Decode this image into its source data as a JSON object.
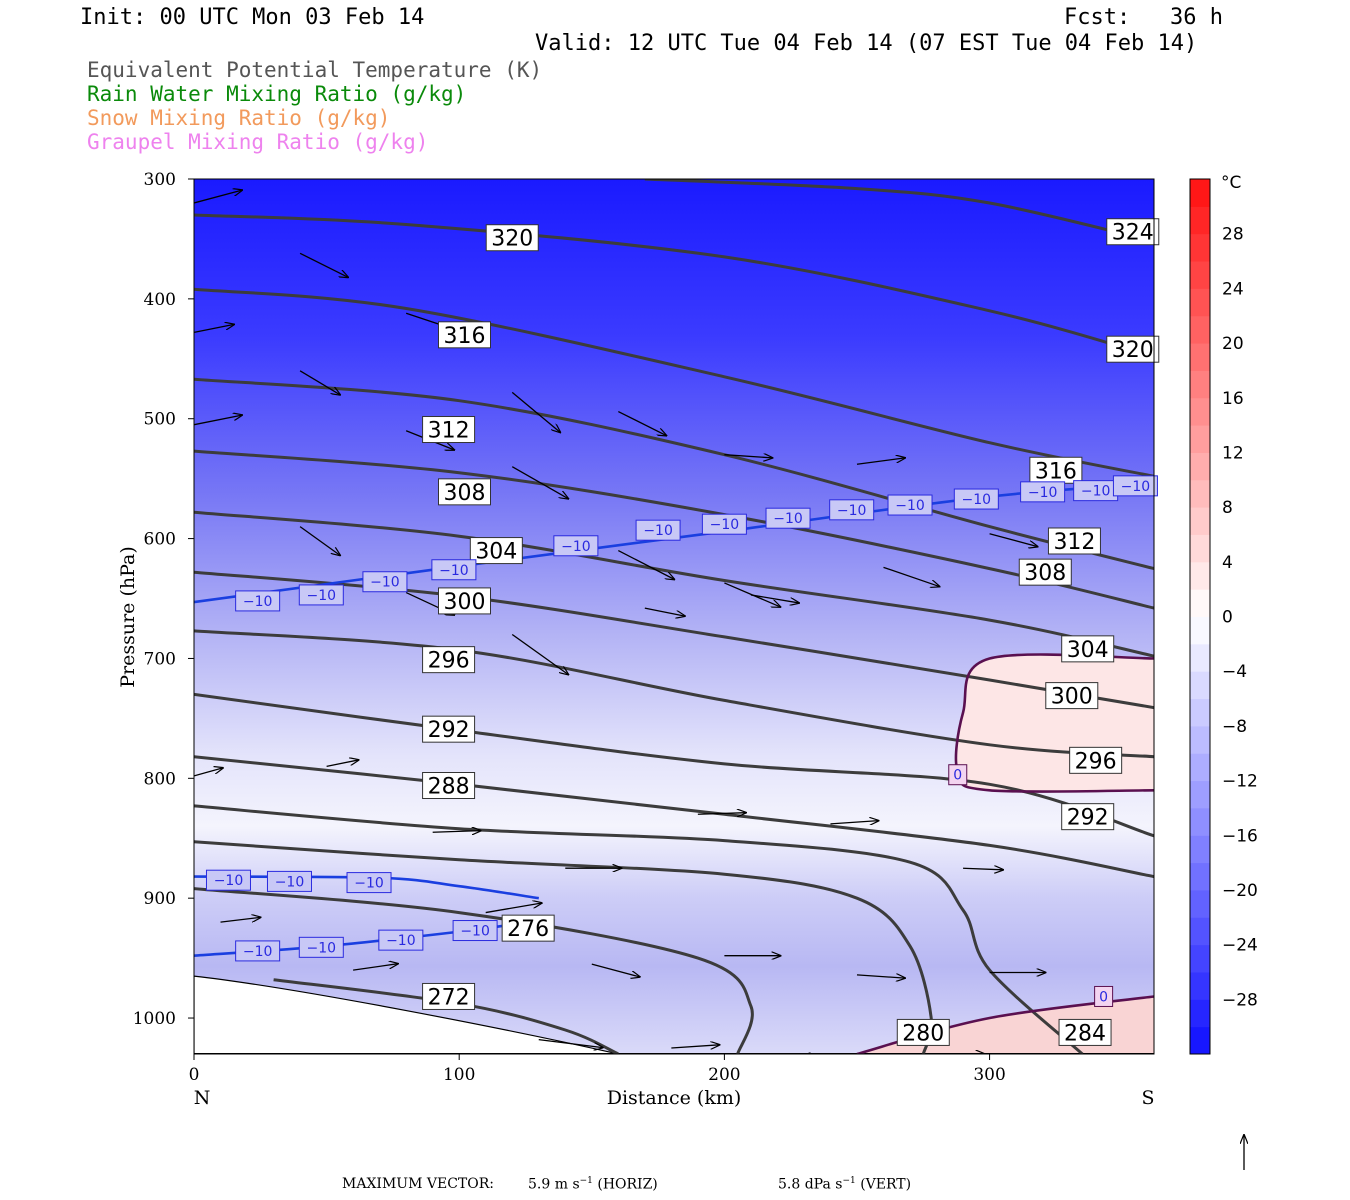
{
  "header": {
    "init": "Init: 00 UTC Mon 03 Feb 14",
    "fcst": "Fcst:   36 h",
    "valid": "Valid: 12 UTC Tue 04 Feb 14 (07 EST Tue 04 Feb 14)"
  },
  "legend": [
    {
      "text": "Equivalent Potential Temperature (K)",
      "color": "#555555"
    },
    {
      "text": "Rain Water Mixing Ratio (g/kg)",
      "color": "#0a8a0a"
    },
    {
      "text": "Snow Mixing Ratio (g/kg)",
      "color": "#f29a5c"
    },
    {
      "text": "Graupel Mixing Ratio (g/kg)",
      "color": "#ee82ee"
    }
  ],
  "chart_data": {
    "type": "cross-section",
    "xlabel": "Distance (km)",
    "ylabel": "Pressure (hPa)",
    "x_ticks": [
      "0",
      "100",
      "200",
      "300"
    ],
    "x_tick_values": [
      0,
      100,
      200,
      300
    ],
    "xlim": [
      0,
      362
    ],
    "y_ticks": [
      "300",
      "400",
      "500",
      "600",
      "700",
      "800",
      "900",
      "1000"
    ],
    "y_tick_values": [
      300,
      400,
      500,
      600,
      700,
      800,
      900,
      1000
    ],
    "ylim": [
      300,
      1030
    ],
    "left_end_label": "N",
    "right_end_label": "S",
    "colorbar": {
      "unit": "°C",
      "tick_labels": [
        "28",
        "24",
        "20",
        "16",
        "12",
        "8",
        "4",
        "0",
        "−4",
        "−8",
        "−12",
        "−16",
        "−20",
        "−24",
        "−28"
      ],
      "tick_values": [
        28,
        24,
        20,
        16,
        12,
        8,
        4,
        0,
        -4,
        -8,
        -12,
        -16,
        -20,
        -24,
        -28
      ],
      "range": [
        -32,
        32
      ],
      "cold_color": "#1010ff",
      "neutral_color": "#ffffff",
      "warm_color": "#ff1010"
    },
    "theta_e_isentropes": [
      {
        "value": 324,
        "label": "324",
        "points": [
          [
            170,
            300
          ],
          [
            250,
            308
          ],
          [
            300,
            320
          ],
          [
            362,
            352
          ]
        ],
        "label_at": [
          354,
          344
        ]
      },
      {
        "value": 320,
        "label": "320",
        "points": [
          [
            0,
            330
          ],
          [
            80,
            338
          ],
          [
            200,
            365
          ],
          [
            300,
            410
          ],
          [
            362,
            448
          ]
        ],
        "label_at": [
          120,
          349
        ],
        "label2": "320",
        "label2_at": [
          354,
          442
        ]
      },
      {
        "value": 316,
        "label": "316",
        "points": [
          [
            0,
            392
          ],
          [
            80,
            408
          ],
          [
            200,
            465
          ],
          [
            300,
            520
          ],
          [
            362,
            548
          ]
        ],
        "label_at": [
          102,
          430
        ],
        "label2": "316",
        "label2_at": [
          325,
          543
        ]
      },
      {
        "value": 312,
        "label": "312",
        "points": [
          [
            0,
            467
          ],
          [
            100,
            485
          ],
          [
            200,
            530
          ],
          [
            300,
            590
          ],
          [
            362,
            625
          ]
        ],
        "label_at": [
          96,
          509
        ],
        "label2": "312",
        "label2_at": [
          332,
          602
        ]
      },
      {
        "value": 308,
        "label": "308",
        "points": [
          [
            0,
            527
          ],
          [
            100,
            545
          ],
          [
            200,
            580
          ],
          [
            300,
            625
          ],
          [
            362,
            658
          ]
        ],
        "label_at": [
          102,
          561
        ],
        "label2": "308",
        "label2_at": [
          321,
          628
        ]
      },
      {
        "value": 304,
        "label": "304",
        "points": [
          [
            0,
            578
          ],
          [
            100,
            598
          ],
          [
            200,
            635
          ],
          [
            300,
            668
          ],
          [
            362,
            698
          ]
        ],
        "label_at": [
          114,
          610
        ],
        "label2": "304",
        "label2_at": [
          337,
          692
        ]
      },
      {
        "value": 300,
        "label": "300",
        "points": [
          [
            0,
            628
          ],
          [
            100,
            648
          ],
          [
            200,
            682
          ],
          [
            300,
            718
          ],
          [
            362,
            741
          ]
        ],
        "label_at": [
          102,
          652
        ],
        "label2": "300",
        "label2_at": [
          331,
          731
        ]
      },
      {
        "value": 296,
        "label": "296",
        "points": [
          [
            0,
            677
          ],
          [
            100,
            693
          ],
          [
            200,
            735
          ],
          [
            300,
            772
          ],
          [
            362,
            782
          ]
        ],
        "label_at": [
          96,
          701
        ],
        "label2": "296",
        "label2_at": [
          340,
          785
        ]
      },
      {
        "value": 292,
        "label": "292",
        "points": [
          [
            0,
            730
          ],
          [
            100,
            760
          ],
          [
            200,
            788
          ],
          [
            300,
            805
          ],
          [
            362,
            848
          ]
        ],
        "label_at": [
          96,
          759
        ],
        "label2": "292",
        "label2_at": [
          337,
          832
        ]
      },
      {
        "value": 288,
        "label": "288",
        "points": [
          [
            0,
            782
          ],
          [
            100,
            805
          ],
          [
            200,
            830
          ],
          [
            300,
            856
          ],
          [
            362,
            882
          ]
        ],
        "label_at": [
          96,
          806
        ]
      },
      {
        "value": 284,
        "label": "284",
        "points": [
          [
            0,
            823
          ],
          [
            100,
            842
          ],
          [
            200,
            852
          ],
          [
            270,
            870
          ],
          [
            290,
            910
          ],
          [
            300,
            960
          ],
          [
            335,
            1030
          ]
        ],
        "label_at": [
          336,
          1012
        ]
      },
      {
        "value": 280,
        "label": "280",
        "points": [
          [
            0,
            853
          ],
          [
            100,
            868
          ],
          [
            200,
            880
          ],
          [
            250,
            900
          ],
          [
            270,
            940
          ],
          [
            278,
            1000
          ],
          [
            275,
            1030
          ]
        ],
        "label_at": [
          275,
          1012
        ]
      },
      {
        "value": 276,
        "label": "276",
        "points": [
          [
            0,
            892
          ],
          [
            100,
            912
          ],
          [
            190,
            950
          ],
          [
            210,
            990
          ],
          [
            205,
            1030
          ]
        ],
        "label_at": [
          126,
          925
        ]
      },
      {
        "value": 272,
        "label": "272",
        "points": [
          [
            30,
            968
          ],
          [
            100,
            988
          ],
          [
            140,
            1010
          ],
          [
            160,
            1030
          ]
        ],
        "label_at": [
          96,
          982
        ]
      }
    ],
    "isotherms_minus10": [
      {
        "label": "−10",
        "points": [
          [
            0,
            653
          ],
          [
            100,
            623
          ],
          [
            200,
            594
          ],
          [
            300,
            565
          ],
          [
            362,
            554
          ]
        ],
        "label_points": [
          [
            24,
            652
          ],
          [
            48,
            647
          ],
          [
            72,
            636
          ],
          [
            98,
            626
          ],
          [
            144,
            606
          ],
          [
            175,
            593
          ],
          [
            200,
            588
          ],
          [
            224,
            583
          ],
          [
            248,
            576
          ],
          [
            270,
            572
          ],
          [
            295,
            567
          ],
          [
            320,
            561
          ],
          [
            340,
            560
          ],
          [
            355,
            556
          ]
        ]
      },
      {
        "label": "−10",
        "points": [
          [
            0,
            882
          ],
          [
            70,
            883
          ],
          [
            100,
            890
          ],
          [
            130,
            900
          ]
        ],
        "label_points": [
          [
            13,
            885
          ],
          [
            36,
            886
          ],
          [
            66,
            887
          ]
        ]
      },
      {
        "label": "−10",
        "points": [
          [
            0,
            948
          ],
          [
            50,
            940
          ],
          [
            100,
            928
          ],
          [
            120,
            922
          ]
        ],
        "label_points": [
          [
            24,
            944
          ],
          [
            48,
            941
          ],
          [
            78,
            935
          ],
          [
            106,
            927
          ]
        ]
      }
    ],
    "isotherms_zero": [
      {
        "label": "0",
        "label_at": [
          288,
          797
        ],
        "points": [
          [
            362,
            700
          ],
          [
            300,
            700
          ],
          [
            290,
            745
          ],
          [
            288,
            795
          ],
          [
            300,
            810
          ],
          [
            362,
            810
          ]
        ]
      },
      {
        "label": "0",
        "label_at": [
          343,
          982
        ],
        "points": [
          [
            250,
            1030
          ],
          [
            300,
            1000
          ],
          [
            362,
            982
          ]
        ]
      }
    ],
    "temperature_field_celsius": [
      {
        "p": 300,
        "t": -40
      },
      {
        "p": 400,
        "t": -32
      },
      {
        "p": 500,
        "t": -24
      },
      {
        "p": 600,
        "t": -14
      },
      {
        "p": 700,
        "t": -6
      },
      {
        "p": 800,
        "t": -2
      },
      {
        "p": 900,
        "t": -6
      },
      {
        "p": 1000,
        "t": -4
      }
    ],
    "wind_vectors": [
      [
        0,
        320,
        30,
        -8
      ],
      [
        40,
        362,
        30,
        15
      ],
      [
        80,
        412,
        30,
        10
      ],
      [
        120,
        478,
        30,
        25
      ],
      [
        160,
        494,
        30,
        15
      ],
      [
        200,
        530,
        30,
        2
      ],
      [
        250,
        538,
        30,
        -4
      ],
      [
        0,
        428,
        25,
        -5
      ],
      [
        40,
        460,
        25,
        15
      ],
      [
        80,
        510,
        30,
        12
      ],
      [
        120,
        540,
        35,
        20
      ],
      [
        160,
        610,
        35,
        18
      ],
      [
        200,
        637,
        35,
        15
      ],
      [
        260,
        624,
        35,
        12
      ],
      [
        0,
        505,
        30,
        -6
      ],
      [
        40,
        590,
        25,
        18
      ],
      [
        80,
        645,
        30,
        14
      ],
      [
        120,
        680,
        35,
        25
      ],
      [
        170,
        658,
        25,
        5
      ],
      [
        210,
        647,
        30,
        5
      ],
      [
        300,
        596,
        30,
        8
      ],
      [
        0,
        798,
        18,
        -5
      ],
      [
        50,
        790,
        20,
        -4
      ],
      [
        90,
        845,
        30,
        -1
      ],
      [
        140,
        875,
        35,
        0
      ],
      [
        190,
        830,
        30,
        -1
      ],
      [
        240,
        838,
        30,
        -2
      ],
      [
        290,
        875,
        25,
        1
      ],
      [
        10,
        920,
        25,
        -3
      ],
      [
        60,
        960,
        28,
        -4
      ],
      [
        110,
        912,
        35,
        -6
      ],
      [
        150,
        955,
        30,
        8
      ],
      [
        200,
        948,
        35,
        0
      ],
      [
        250,
        964,
        30,
        2
      ],
      [
        300,
        962,
        35,
        0
      ],
      [
        130,
        1018,
        40,
        5
      ],
      [
        180,
        1025,
        30,
        -2
      ],
      [
        220,
        1030,
        25,
        2
      ],
      [
        280,
        1030,
        30,
        0
      ]
    ],
    "footer": {
      "label": "MAXIMUM VECTOR:",
      "horiz_value": "5.9 m s",
      "horiz_exp": "−1",
      "horiz_tag": "(HORIZ)",
      "vert_value": "5.8 dPa s",
      "vert_exp": "−1",
      "vert_tag": "(VERT)"
    }
  }
}
